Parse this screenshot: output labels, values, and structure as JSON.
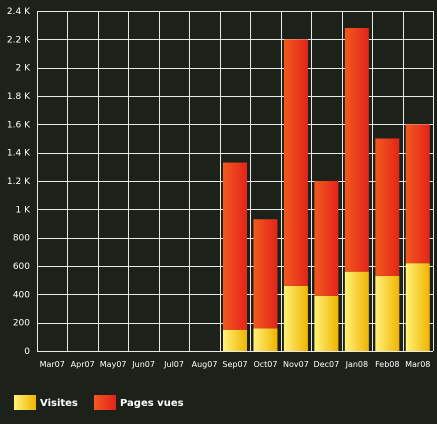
{
  "chart_data": {
    "type": "bar",
    "stacked": true,
    "categories": [
      "Mar07",
      "Apr07",
      "May07",
      "Jun07",
      "Jul07",
      "Aug07",
      "Sep07",
      "Oct07",
      "Nov07",
      "Dec07",
      "Jan08",
      "Feb08",
      "Mar08"
    ],
    "series": [
      {
        "name": "Visites",
        "color": "#f5c518",
        "values": [
          0,
          0,
          0,
          0,
          0,
          0,
          150,
          160,
          460,
          390,
          560,
          530,
          620
        ]
      },
      {
        "name": "Pages vues",
        "color": "#e8341a",
        "values": [
          0,
          0,
          0,
          0,
          0,
          0,
          1180,
          770,
          1740,
          810,
          1720,
          970,
          980
        ]
      }
    ],
    "y_ticks": [
      "0",
      "200",
      "400",
      "600",
      "800",
      "1 K",
      "1.2 K",
      "1.4 K",
      "1.6 K",
      "1.8 K",
      "2 K",
      "2.2 K",
      "2.4 K"
    ],
    "ylim": [
      0,
      2400
    ],
    "grid": true,
    "legend_position": "bottom-left",
    "title": "",
    "xlabel": "",
    "ylabel": ""
  }
}
